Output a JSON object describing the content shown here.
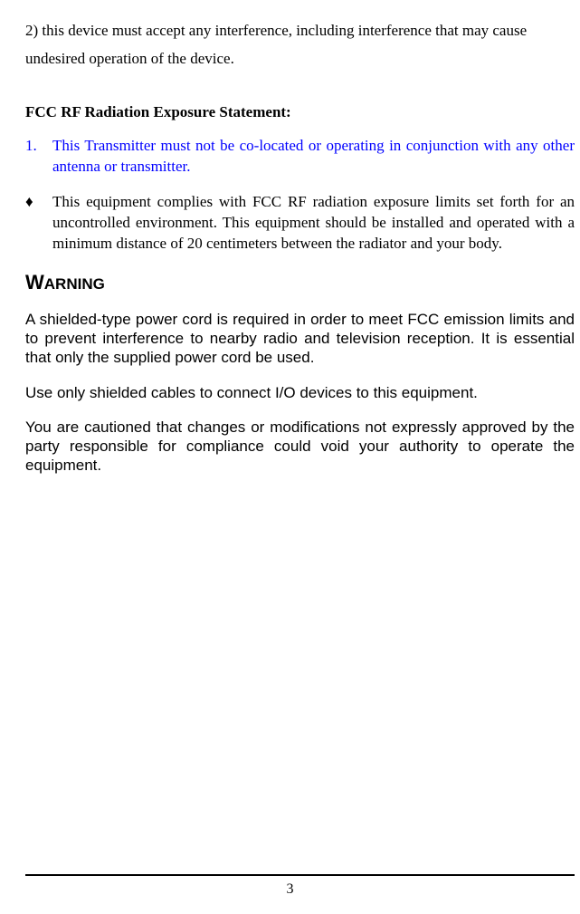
{
  "intro_line": "2) this device must accept any interference, including interference that may cause undesired operation of the device.",
  "heading_fcc": "FCC RF Radiation Exposure Statement:",
  "list1": {
    "marker": "1.",
    "text": "This Transmitter must not be co-located or operating in conjunction with any other antenna or transmitter."
  },
  "list2": {
    "marker": "♦",
    "text": "This equipment complies with FCC RF radiation exposure limits set forth for an uncontrolled environment. This equipment should be installed and operated with a minimum distance of 20 centimeters between the radiator and your body."
  },
  "warning_label_big": "W",
  "warning_label_rest": "ARNING",
  "warning_p1": "A shielded-type power cord is required in order to meet FCC emission limits and to prevent interference to nearby radio and television reception. It is essential that only the supplied power cord be used.",
  "warning_p2": "Use only shielded cables to connect I/O devices to this equipment.",
  "warning_p3": "You are cautioned that changes or modifications not expressly approved by the party responsible for compliance could void your authority to operate the equipment.",
  "page_number": "3",
  "colors": {
    "link_blue": "#0000ff",
    "text": "#000000",
    "background": "#ffffff"
  }
}
